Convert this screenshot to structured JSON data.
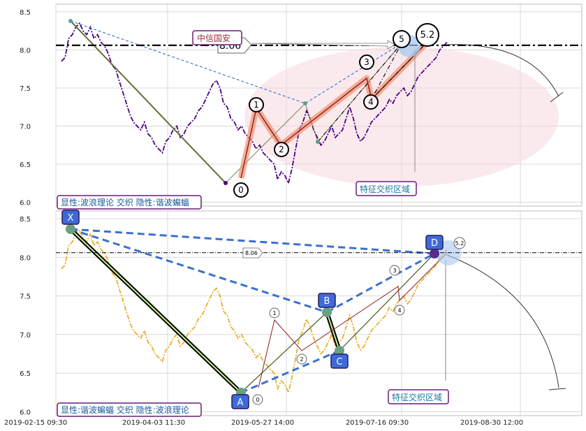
{
  "chart_data": [
    {
      "type": "line",
      "panel": "top",
      "ylim": [
        5.95,
        8.6
      ],
      "yticks": [
        "6.0",
        "6.5",
        "7.0",
        "7.5",
        "8.0",
        "8.5"
      ],
      "hline": {
        "value": 8.06,
        "label": "8.06"
      },
      "series": [
        {
          "color": "#4b0082",
          "style": "dash-dot",
          "y": [
            7.85,
            7.9,
            8.15,
            8.2,
            8.3,
            8.35,
            8.25,
            8.2,
            8.3,
            8.15,
            8.2,
            8.1,
            8.05,
            7.95,
            7.8,
            7.75,
            7.6,
            7.45,
            7.3,
            7.15,
            7.05,
            7.0,
            6.95,
            7.05,
            6.9,
            6.85,
            6.75,
            6.7,
            6.65,
            6.8,
            6.85,
            6.95,
            7.0,
            6.85,
            6.9,
            7.0,
            7.05,
            7.1,
            7.2,
            7.25,
            7.35,
            7.45,
            7.55,
            7.6,
            7.5,
            7.3,
            7.25,
            7.1,
            7.05,
            6.95,
            7.0,
            6.9,
            6.85,
            6.8,
            6.7,
            6.75,
            6.65,
            6.6,
            6.55,
            6.5,
            6.3,
            6.4,
            6.35,
            6.25,
            6.45,
            6.7,
            6.95,
            7.05,
            7.2,
            7.1,
            6.95,
            6.85,
            6.75,
            6.8,
            6.9,
            7.0,
            6.85,
            6.9,
            6.95,
            7.1,
            7.25,
            7.1,
            6.9,
            6.8,
            6.85,
            6.95,
            7.05,
            7.1,
            7.15,
            7.2,
            7.25,
            7.35,
            7.3,
            7.4,
            7.45,
            7.5,
            7.4,
            7.45,
            7.55,
            7.65,
            7.7,
            7.75,
            7.8,
            7.85,
            7.9,
            8.0,
            8.05,
            8.1
          ]
        }
      ],
      "wave_labels": [
        {
          "label": "0",
          "x": 0.398,
          "y": 6.24
        },
        {
          "label": "1",
          "x": 0.432,
          "y": 7.18
        },
        {
          "label": "2",
          "x": 0.477,
          "y": 6.7
        },
        {
          "label": "3",
          "x": 0.627,
          "y": 7.6
        },
        {
          "label": "4",
          "x": 0.635,
          "y": 7.35
        },
        {
          "label": "5",
          "x": 0.69,
          "y": 8.05
        },
        {
          "label": "5.2",
          "x": 0.73,
          "y": 8.06
        }
      ],
      "boxes": {
        "left": "显性:波浪理论 交织 隐性:谐波蝙蝠",
        "zone": "特征交织区域",
        "note": "中信国安"
      }
    },
    {
      "type": "line",
      "panel": "bottom",
      "ylim": [
        5.95,
        8.6
      ],
      "yticks": [
        "6.0",
        "6.5",
        "7.0",
        "7.5",
        "8.0",
        "8.5"
      ],
      "xticks": [
        "2019-02-15 09:30",
        "2019-04-03 11:30",
        "2019-05-27 14:00",
        "2019-07-16 09:30",
        "2019-08-30 12:00"
      ],
      "hline": {
        "value": 8.06,
        "label": "8.06"
      },
      "series": [
        {
          "color": "#e8b030",
          "style": "dash-dot",
          "y": [
            7.85,
            7.9,
            8.15,
            8.2,
            8.3,
            8.35,
            8.25,
            8.2,
            8.3,
            8.15,
            8.2,
            8.1,
            8.05,
            7.95,
            7.8,
            7.75,
            7.6,
            7.45,
            7.3,
            7.15,
            7.05,
            7.0,
            6.95,
            7.05,
            6.9,
            6.85,
            6.75,
            6.7,
            6.65,
            6.8,
            6.85,
            6.95,
            7.0,
            6.85,
            6.9,
            7.0,
            7.05,
            7.1,
            7.2,
            7.25,
            7.35,
            7.45,
            7.55,
            7.6,
            7.5,
            7.3,
            7.25,
            7.1,
            7.05,
            6.95,
            7.0,
            6.9,
            6.85,
            6.8,
            6.7,
            6.75,
            6.65,
            6.6,
            6.55,
            6.5,
            6.3,
            6.4,
            6.35,
            6.25,
            6.45,
            6.7,
            6.95,
            7.05,
            7.2,
            7.1,
            6.95,
            6.85,
            6.75,
            6.8,
            6.9,
            7.0,
            6.85,
            6.9,
            6.95,
            7.1,
            7.25,
            7.1,
            6.9,
            6.8,
            6.85,
            6.95,
            7.05,
            7.1,
            7.15,
            7.2,
            7.25,
            7.35,
            7.3,
            7.4,
            7.45,
            7.5,
            7.4,
            7.45,
            7.55,
            7.65,
            7.7,
            7.75,
            7.8,
            7.85,
            7.9,
            8.0,
            8.05,
            8.1
          ]
        }
      ],
      "harmonic_points": [
        {
          "label": "X",
          "y": 8.37
        },
        {
          "label": "A",
          "y": 6.27
        },
        {
          "label": "B",
          "y": 7.3
        },
        {
          "label": "C",
          "y": 6.78
        },
        {
          "label": "D",
          "y": 8.05
        }
      ],
      "wave_labels": [
        {
          "label": "0"
        },
        {
          "label": "1"
        },
        {
          "label": "2"
        },
        {
          "label": "3"
        },
        {
          "label": "4"
        },
        {
          "label": "5.2"
        }
      ],
      "boxes": {
        "left": "显性:谐波蝙蝠 交织 隐性:波浪理论",
        "zone": "特征交织区域"
      }
    }
  ]
}
